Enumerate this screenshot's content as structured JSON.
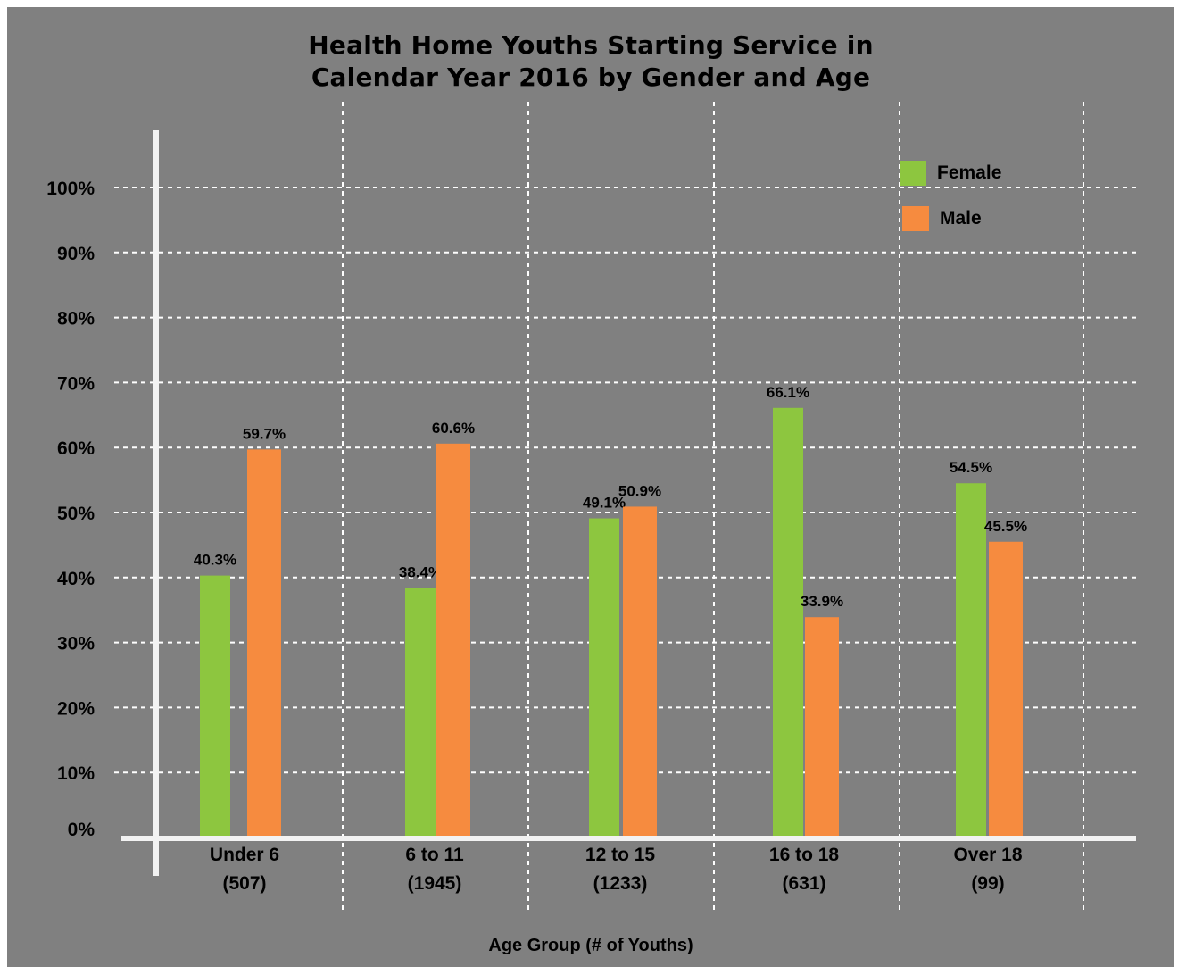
{
  "chart_data": {
    "type": "bar",
    "title_lines": [
      "Health Home Youths Starting Service in",
      "Calendar Year 2016 by Gender and Age"
    ],
    "xlabel": "Age Group (# of Youths)",
    "ylabel": "",
    "ylim": [
      0,
      100
    ],
    "y_ticks": [
      "0%",
      "10%",
      "20%",
      "30%",
      "40%",
      "50%",
      "60%",
      "70%",
      "80%",
      "90%",
      "100%"
    ],
    "categories": [
      {
        "name": "Under 6",
        "count": "(507)"
      },
      {
        "name": "6 to 11",
        "count": "(1945)"
      },
      {
        "name": "12 to 15",
        "count": "(1233)"
      },
      {
        "name": "16 to 18",
        "count": "(631)"
      },
      {
        "name": "Over 18",
        "count": "(99)"
      }
    ],
    "series": [
      {
        "name": "Female",
        "color": "#8dc63f",
        "values": [
          40.3,
          38.4,
          49.1,
          66.1,
          54.5
        ],
        "labels": [
          "40.3%",
          "38.4%",
          "49.1%",
          "66.1%",
          "54.5%"
        ]
      },
      {
        "name": "Male",
        "color": "#f68b3f",
        "values": [
          59.7,
          60.6,
          50.9,
          33.9,
          45.5
        ],
        "labels": [
          "59.7%",
          "60.6%",
          "50.9%",
          "33.9%",
          "45.5%"
        ]
      }
    ],
    "grid": true,
    "legend_position": "top-right",
    "background_color": "#808080",
    "axis_color": "#f2f2f2"
  }
}
